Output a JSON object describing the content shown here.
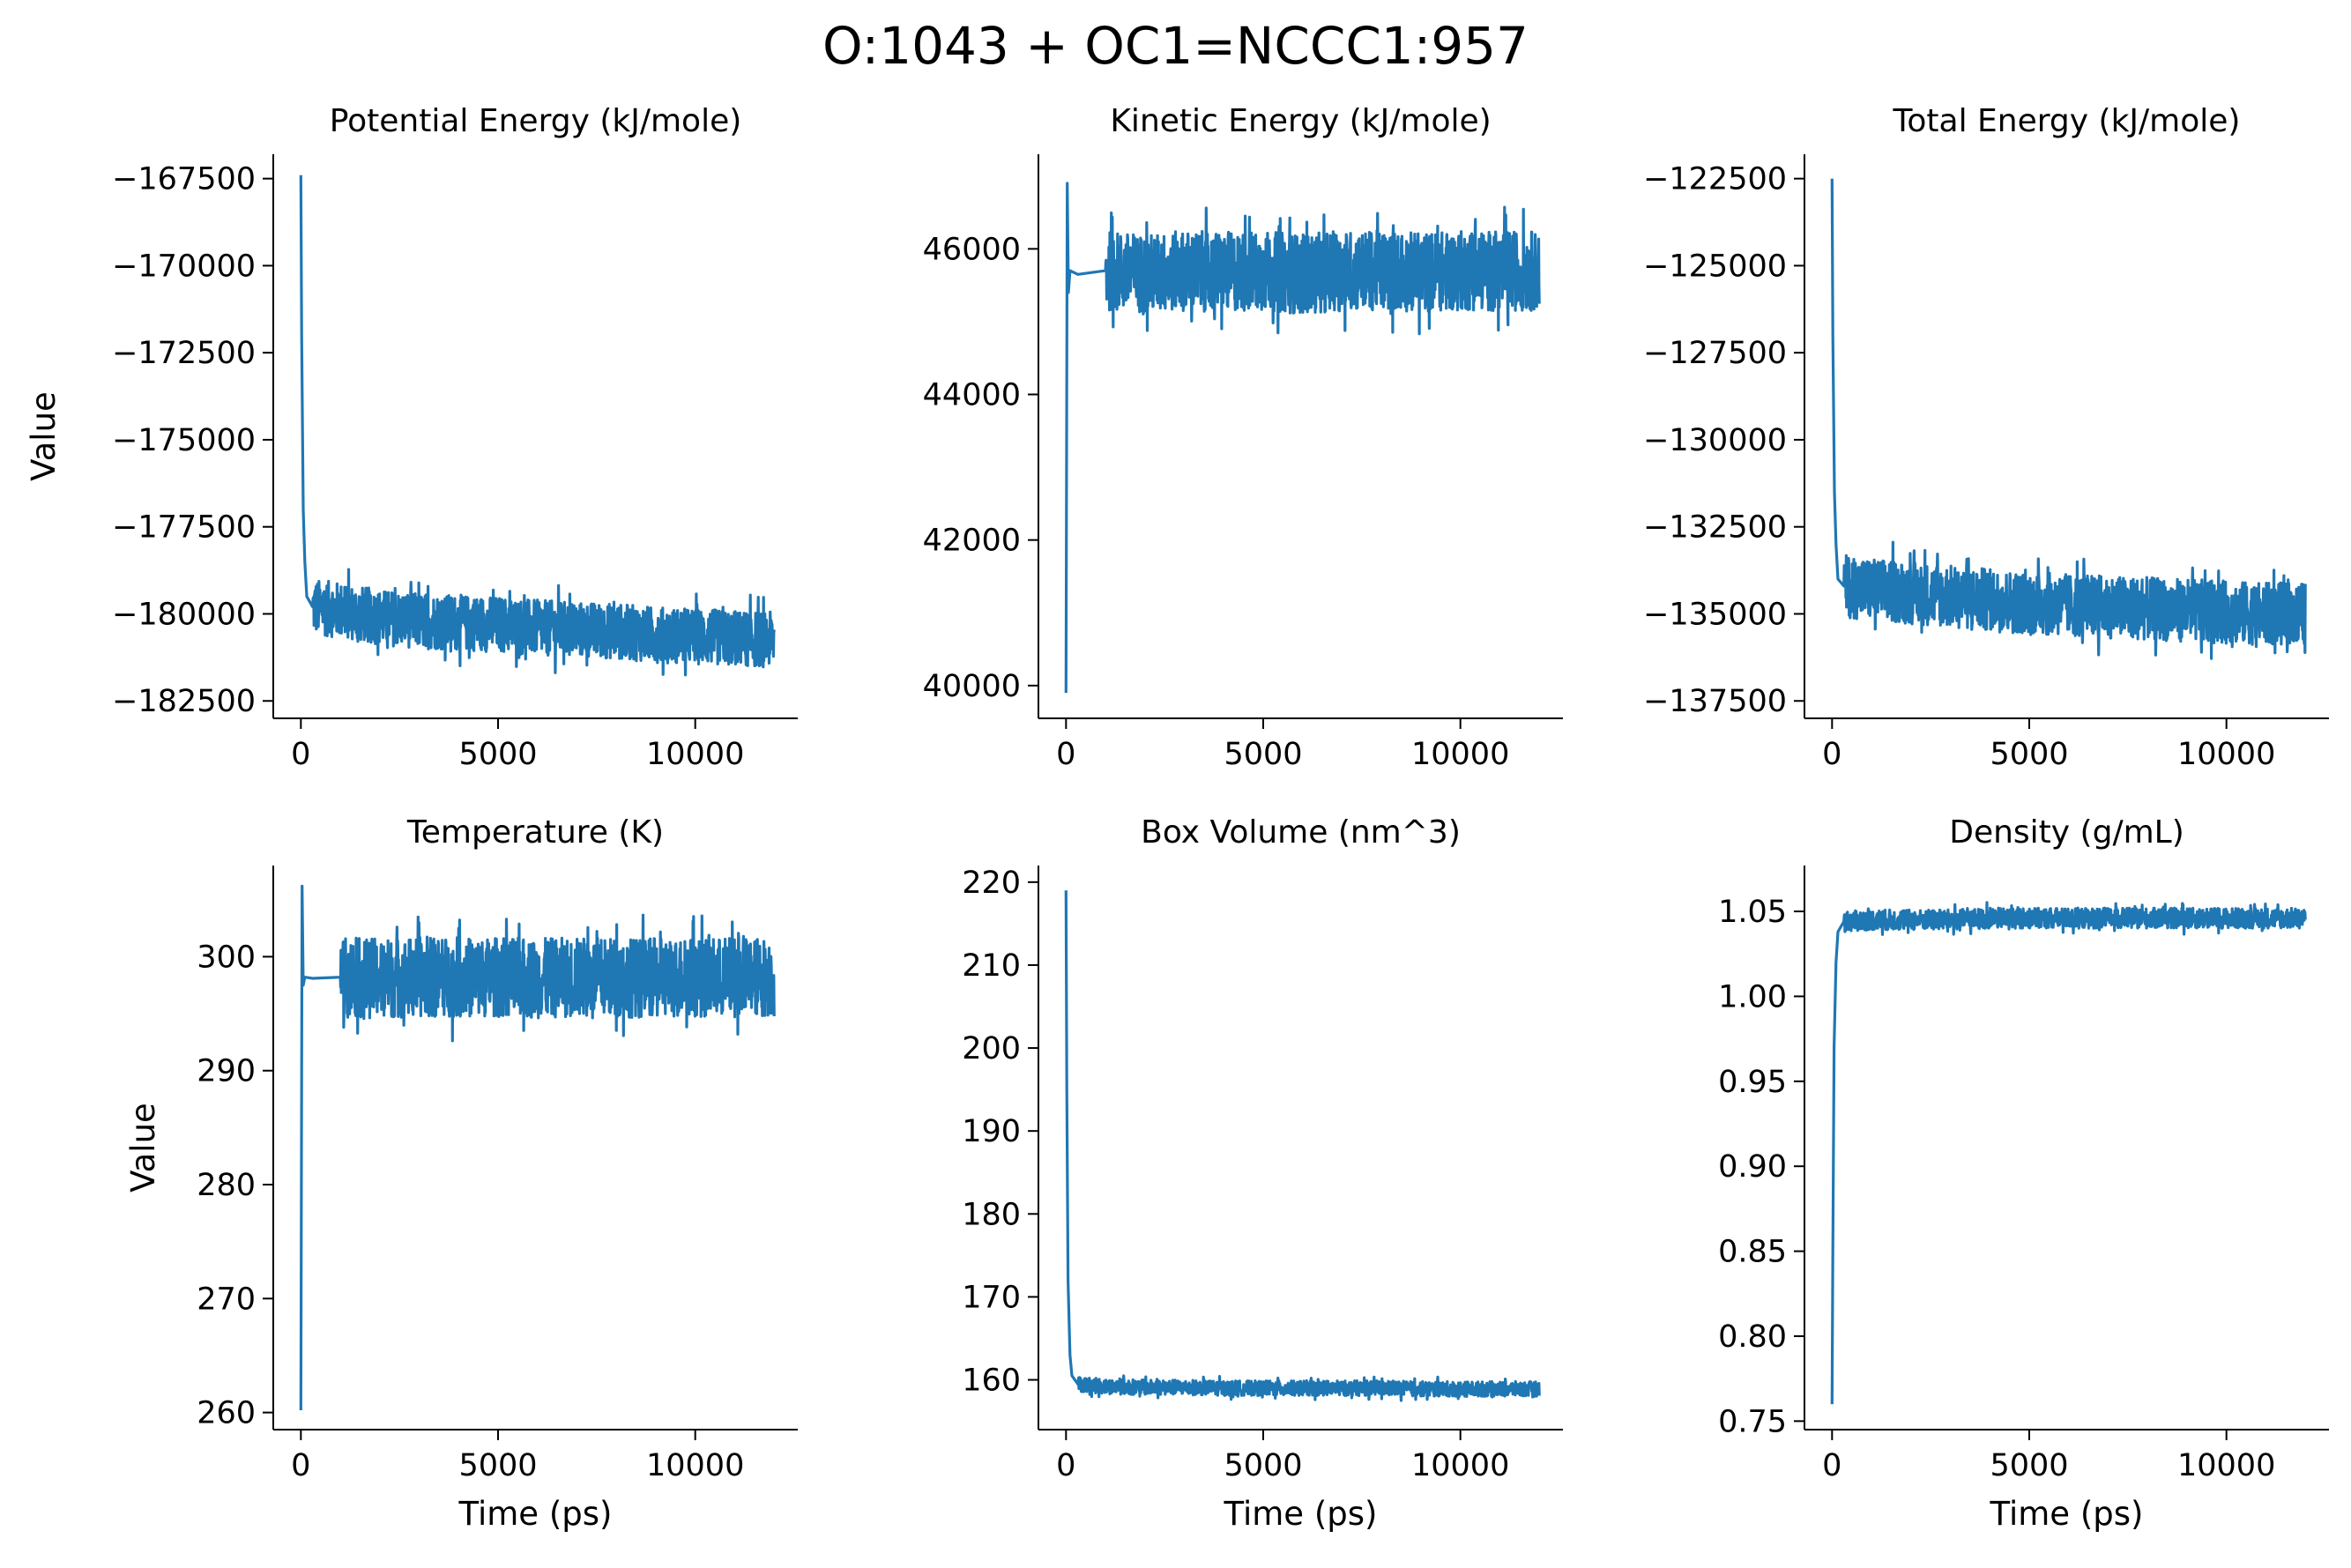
{
  "figure": {
    "title": "O:1043 + OC1=NCCC1:957",
    "line_color": "#1f77b4"
  },
  "chart_data": [
    {
      "type": "line",
      "title": "Potential Energy (kJ/mole)",
      "xlabel": "",
      "ylabel": "Value",
      "xlim": [
        -700,
        12600
      ],
      "ylim": [
        -183000,
        -166800
      ],
      "xticks": [
        0,
        5000,
        10000
      ],
      "yticks": [
        -167500,
        -170000,
        -172500,
        -175000,
        -177500,
        -180000,
        -182500
      ],
      "grid": false,
      "x": [
        0,
        20,
        60,
        100,
        150,
        300,
        1000,
        2000,
        3000,
        4000,
        5000,
        6000,
        7000,
        8000,
        9000,
        10000,
        11000,
        12000
      ],
      "y": [
        -167400,
        -172000,
        -177000,
        -178500,
        -179500,
        -179800,
        -179900,
        -180100,
        -180200,
        -180250,
        -180300,
        -180400,
        -180450,
        -180500,
        -180600,
        -180650,
        -180700,
        -180750
      ],
      "band_halfwidth": 800
    },
    {
      "type": "line",
      "title": "Kinetic Energy (kJ/mole)",
      "xlabel": "",
      "ylabel": "",
      "xlim": [
        -700,
        12600
      ],
      "ylim": [
        39550,
        47300
      ],
      "xticks": [
        0,
        5000,
        10000
      ],
      "yticks": [
        40000,
        42000,
        44000,
        46000
      ],
      "grid": false,
      "x": [
        0,
        30,
        60,
        100,
        300,
        1000,
        2000,
        3000,
        4000,
        5000,
        6000,
        7000,
        8000,
        9000,
        10000,
        11000,
        12000
      ],
      "y": [
        39900,
        46900,
        45400,
        45700,
        45650,
        45700,
        45650,
        45700,
        45680,
        45700,
        45650,
        45700,
        45700,
        45680,
        45700,
        45700,
        45700
      ],
      "band_halfwidth": 550
    },
    {
      "type": "line",
      "title": "Total Energy (kJ/mole)",
      "xlabel": "",
      "ylabel": "",
      "xlim": [
        -700,
        12600
      ],
      "ylim": [
        -138000,
        -121800
      ],
      "xticks": [
        0,
        5000,
        10000
      ],
      "yticks": [
        -122500,
        -125000,
        -127500,
        -130000,
        -132500,
        -135000,
        -137500
      ],
      "grid": false,
      "x": [
        0,
        20,
        60,
        100,
        150,
        300,
        1000,
        2000,
        3000,
        4000,
        5000,
        6000,
        7000,
        8000,
        9000,
        10000,
        11000,
        12000
      ],
      "y": [
        -122500,
        -127000,
        -131500,
        -133000,
        -134000,
        -134200,
        -134300,
        -134400,
        -134500,
        -134600,
        -134700,
        -134750,
        -134800,
        -134850,
        -134900,
        -134950,
        -135000,
        -135000
      ],
      "band_halfwidth": 900
    },
    {
      "type": "line",
      "title": "Temperature (K)",
      "xlabel": "Time (ps)",
      "ylabel": "Value",
      "xlim": [
        -700,
        12600
      ],
      "ylim": [
        258.5,
        308
      ],
      "xticks": [
        0,
        5000,
        10000
      ],
      "yticks": [
        260,
        270,
        280,
        290,
        300
      ],
      "grid": false,
      "x": [
        0,
        30,
        60,
        100,
        300,
        1000,
        2000,
        3000,
        4000,
        5000,
        6000,
        7000,
        8000,
        9000,
        10000,
        11000,
        12000
      ],
      "y": [
        260.2,
        306.2,
        297.5,
        298.2,
        298.1,
        298.2,
        298.1,
        298.2,
        298.2,
        298.2,
        298.1,
        298.2,
        298.2,
        298.1,
        298.2,
        298.2,
        298.2
      ],
      "band_halfwidth": 3.5
    },
    {
      "type": "line",
      "title": "Box Volume (nm^3)",
      "xlabel": "Time (ps)",
      "ylabel": "",
      "xlim": [
        -700,
        12600
      ],
      "ylim": [
        154,
        222
      ],
      "xticks": [
        0,
        5000,
        10000
      ],
      "yticks": [
        160,
        170,
        180,
        190,
        200,
        210,
        220
      ],
      "grid": false,
      "x": [
        0,
        20,
        50,
        100,
        150,
        300,
        1000,
        2000,
        3000,
        4000,
        5000,
        6000,
        7000,
        8000,
        9000,
        10000,
        11000,
        12000
      ],
      "y": [
        219,
        195,
        172,
        163,
        160.5,
        159.5,
        159.2,
        159.1,
        159.1,
        159.0,
        159.0,
        159.0,
        159.0,
        159.0,
        158.9,
        158.9,
        158.9,
        158.9
      ],
      "band_halfwidth": 0.9
    },
    {
      "type": "line",
      "title": "Density (g/mL)",
      "xlabel": "Time (ps)",
      "ylabel": "",
      "xlim": [
        -700,
        12600
      ],
      "ylim": [
        0.745,
        1.077
      ],
      "xticks": [
        0,
        5000,
        10000
      ],
      "yticks": [
        0.75,
        0.8,
        0.85,
        0.9,
        0.95,
        1.0,
        1.05
      ],
      "ytick_labels": [
        "0.75",
        "0.80",
        "0.85",
        "0.90",
        "0.95",
        "1.00",
        "1.05"
      ],
      "grid": false,
      "x": [
        0,
        20,
        50,
        100,
        150,
        300,
        1000,
        2000,
        3000,
        4000,
        5000,
        6000,
        7000,
        8000,
        9000,
        10000,
        11000,
        12000
      ],
      "y": [
        0.76,
        0.85,
        0.97,
        1.02,
        1.038,
        1.044,
        1.045,
        1.045,
        1.045,
        1.046,
        1.046,
        1.046,
        1.046,
        1.046,
        1.046,
        1.046,
        1.046,
        1.046
      ],
      "band_halfwidth": 0.006
    }
  ]
}
